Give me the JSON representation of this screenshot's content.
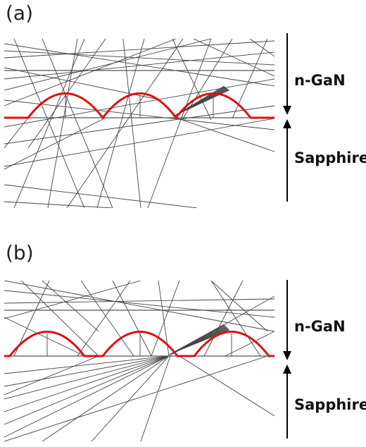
{
  "figure": {
    "panels": [
      {
        "id": "a",
        "label": "(a)",
        "layers": {
          "top": "n-GaN",
          "bottom": "Sapphire"
        }
      },
      {
        "id": "b",
        "label": "(b)",
        "layers": {
          "top": "n-GaN",
          "bottom": "Sapphire"
        }
      }
    ],
    "colors": {
      "pattern": "#dd1111",
      "rays": "#444444",
      "interfaces": "#555555",
      "arrows": "#000000"
    }
  }
}
